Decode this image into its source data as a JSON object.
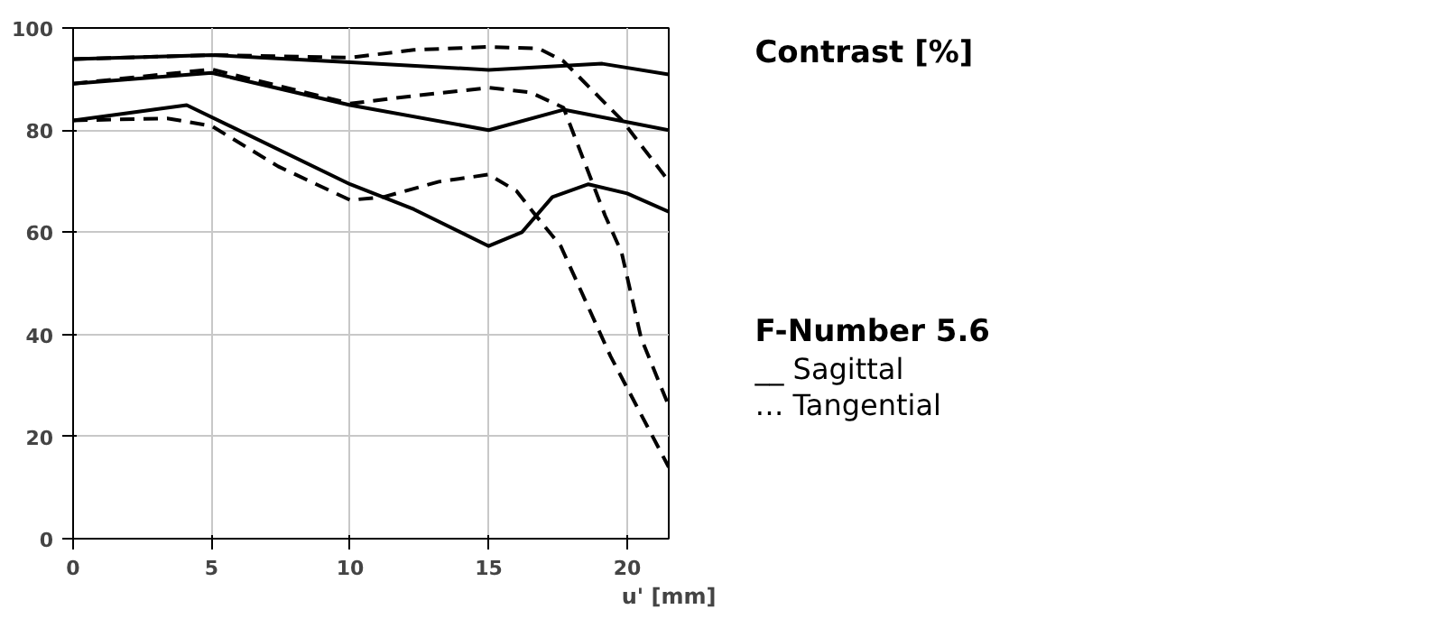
{
  "chart_data": {
    "type": "line",
    "ylabel": "Contrast [%]",
    "subtitle": "F-Number 5.6",
    "xlabel": "u' [mm]",
    "annotations": [
      "__ Sagittal",
      "… Tangential"
    ],
    "xlim": [
      0,
      21.5
    ],
    "ylim": [
      0,
      100
    ],
    "xticks": [
      0,
      5,
      10,
      15,
      20
    ],
    "yticks": [
      0,
      20,
      40,
      60,
      80,
      100
    ],
    "grid": true,
    "series": [
      {
        "color": "#000000",
        "line_style": "solid",
        "x": [
          0,
          5,
          10,
          15,
          19.1,
          21.5
        ],
        "values": [
          93.9,
          94.7,
          93.3,
          91.8,
          93,
          90.9
        ]
      },
      {
        "color": "#000000",
        "line_style": "dashed",
        "x": [
          0,
          5,
          10,
          12.3,
          15,
          16.8,
          17.7,
          19.8,
          21.5
        ],
        "values": [
          93.9,
          94.7,
          94.2,
          95.7,
          96.3,
          96,
          93.5,
          82,
          70
        ]
      },
      {
        "color": "#000000",
        "line_style": "solid",
        "x": [
          0,
          5,
          10,
          15,
          17.7,
          21.5
        ],
        "values": [
          89.1,
          91.2,
          84.9,
          80,
          84,
          80
        ]
      },
      {
        "color": "#000000",
        "line_style": "dashed",
        "x": [
          0,
          5,
          10,
          12.3,
          15,
          16.5,
          17.7,
          19.2,
          19.8,
          20.5,
          21.5
        ],
        "values": [
          89.1,
          91.9,
          85.2,
          86.7,
          88.3,
          87.4,
          84.4,
          63.3,
          56,
          39.3,
          26
        ]
      },
      {
        "color": "#000000",
        "line_style": "solid",
        "x": [
          0,
          4.1,
          10,
          12.3,
          15,
          16.2,
          17.3,
          18.6,
          20,
          21.5
        ],
        "values": [
          81.9,
          84.9,
          69.4,
          64.5,
          57.3,
          60,
          66.9,
          69.4,
          67.6,
          64
        ]
      },
      {
        "color": "#000000",
        "line_style": "dashed",
        "x": [
          0,
          3.4,
          5,
          7.4,
          10,
          11.2,
          13.2,
          15,
          16,
          16.7,
          17.6,
          19.4,
          21.5
        ],
        "values": [
          81.9,
          82.3,
          80.8,
          72.9,
          66.3,
          66.9,
          69.9,
          71.3,
          68.1,
          63.3,
          57.3,
          35.7,
          14
        ]
      }
    ]
  }
}
